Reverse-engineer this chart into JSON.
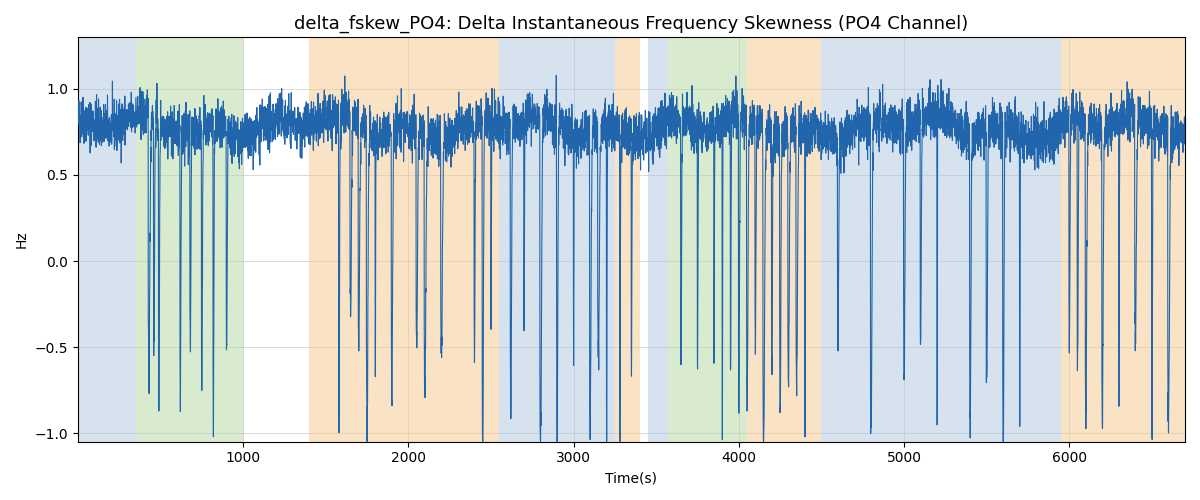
{
  "title": "delta_fskew_PO4: Delta Instantaneous Frequency Skewness (PO4 Channel)",
  "xlabel": "Time(s)",
  "ylabel": "Hz",
  "xlim": [
    0,
    6700
  ],
  "ylim": [
    -1.05,
    1.3
  ],
  "line_color": "#2166ac",
  "line_width": 0.8,
  "grid_color": "#bbbbbb",
  "background_bands": [
    {
      "xmin": 0,
      "xmax": 350,
      "color": "#aec9e0",
      "alpha": 0.5
    },
    {
      "xmin": 350,
      "xmax": 1000,
      "color": "#b2d9a0",
      "alpha": 0.5
    },
    {
      "xmin": 1400,
      "xmax": 2550,
      "color": "#f7c98a",
      "alpha": 0.5
    },
    {
      "xmin": 2550,
      "xmax": 3250,
      "color": "#aec9e0",
      "alpha": 0.5
    },
    {
      "xmin": 3250,
      "xmax": 3400,
      "color": "#f7c98a",
      "alpha": 0.5
    },
    {
      "xmin": 3450,
      "xmax": 3570,
      "color": "#aec9e0",
      "alpha": 0.5
    },
    {
      "xmin": 3570,
      "xmax": 4050,
      "color": "#b2d9a0",
      "alpha": 0.5
    },
    {
      "xmin": 4050,
      "xmax": 4500,
      "color": "#f7c98a",
      "alpha": 0.5
    },
    {
      "xmin": 4500,
      "xmax": 5750,
      "color": "#aec9e0",
      "alpha": 0.5
    },
    {
      "xmin": 5750,
      "xmax": 5950,
      "color": "#aec9e0",
      "alpha": 0.5
    },
    {
      "xmin": 5950,
      "xmax": 6700,
      "color": "#f7c98a",
      "alpha": 0.5
    }
  ],
  "seed": 42,
  "title_fontsize": 13
}
